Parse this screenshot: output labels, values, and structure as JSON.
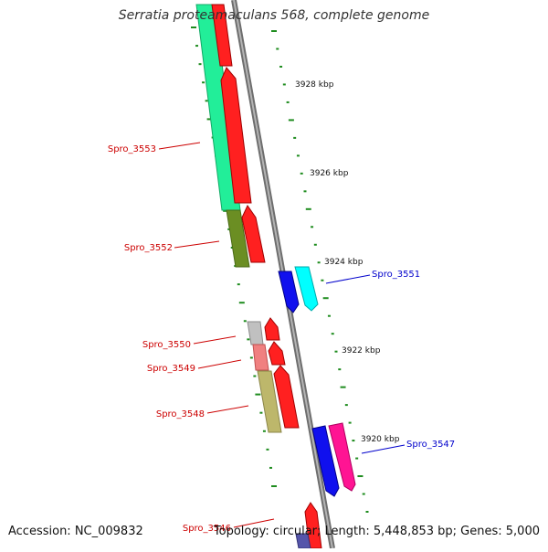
{
  "title": "Serratia proteamaculans 568, complete genome",
  "footer": {
    "accession": "Accession: NC_009832",
    "summary": "Topology: circular; Length: 5,448,853 bp; Genes: 5,000"
  },
  "colors": {
    "backbone": "#8a8a8a",
    "scale_ticks": "#1e8c1e",
    "label_forward": "#cc0000",
    "label_reverse": "#0000cc"
  },
  "scale_labels": [
    "3928 kbp",
    "3926 kbp",
    "3924 kbp",
    "3922 kbp",
    "3920 kbp"
  ],
  "genes": [
    {
      "label": "Spro_3553",
      "strand": "forward",
      "feature_color": "#22ee99"
    },
    {
      "label": "Spro_3552",
      "strand": "forward",
      "feature_color": "#6b8e23"
    },
    {
      "label": "Spro_3551",
      "strand": "reverse",
      "feature_color": "#00ffff"
    },
    {
      "label": "Spro_3550",
      "strand": "forward",
      "feature_color": "#c0c0c0"
    },
    {
      "label": "Spro_3549",
      "strand": "forward",
      "feature_color": "#f08080"
    },
    {
      "label": "Spro_3548",
      "strand": "forward",
      "feature_color": "#bdb76b"
    },
    {
      "label": "Spro_3547",
      "strand": "reverse",
      "feature_color": "#ff1493"
    },
    {
      "label": "Spro_3546",
      "strand": "forward",
      "feature_color": "#ff0000"
    }
  ]
}
